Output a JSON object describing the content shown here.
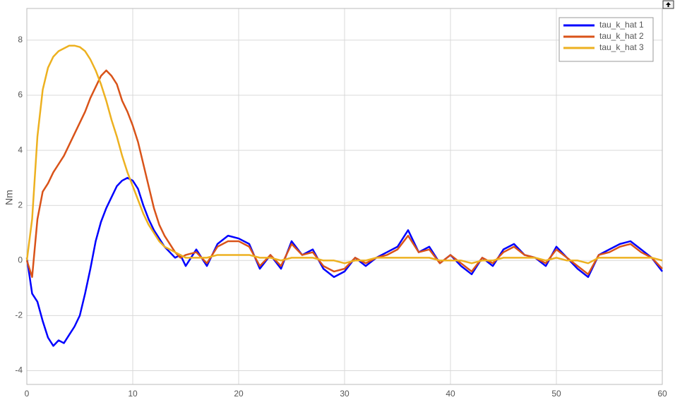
{
  "chart_data": {
    "type": "line",
    "ylabel": "Nm",
    "x": [
      0,
      0.5,
      1,
      1.5,
      2,
      2.5,
      3,
      3.5,
      4,
      4.5,
      5,
      5.5,
      6,
      6.5,
      7,
      7.5,
      8,
      8.5,
      9,
      9.5,
      10,
      10.5,
      11,
      11.5,
      12,
      12.5,
      13,
      13.5,
      14,
      14.5,
      15,
      16,
      17,
      18,
      19,
      20,
      21,
      22,
      23,
      24,
      25,
      26,
      27,
      28,
      29,
      30,
      31,
      32,
      33,
      34,
      35,
      36,
      37,
      38,
      39,
      40,
      41,
      42,
      43,
      44,
      45,
      46,
      47,
      48,
      49,
      50,
      51,
      52,
      53,
      54,
      55,
      56,
      57,
      58,
      59,
      60
    ],
    "series": [
      {
        "name": "tau_k_hat 1",
        "color": "#0000ff",
        "values": [
          0.1,
          -1.2,
          -1.5,
          -2.2,
          -2.8,
          -3.1,
          -2.9,
          -3.0,
          -2.7,
          -2.4,
          -2.0,
          -1.2,
          -0.3,
          0.7,
          1.4,
          1.9,
          2.3,
          2.7,
          2.9,
          3.0,
          2.9,
          2.6,
          2.0,
          1.5,
          1.1,
          0.8,
          0.5,
          0.3,
          0.1,
          0.2,
          -0.2,
          0.4,
          -0.2,
          0.6,
          0.9,
          0.8,
          0.6,
          -0.3,
          0.2,
          -0.3,
          0.7,
          0.2,
          0.4,
          -0.3,
          -0.6,
          -0.4,
          0.1,
          -0.2,
          0.1,
          0.3,
          0.5,
          1.1,
          0.3,
          0.5,
          -0.1,
          0.2,
          -0.2,
          -0.5,
          0.1,
          -0.2,
          0.4,
          0.6,
          0.2,
          0.1,
          -0.2,
          0.5,
          0.1,
          -0.3,
          -0.6,
          0.2,
          0.4,
          0.6,
          0.7,
          0.4,
          0.1,
          -0.4
        ]
      },
      {
        "name": "tau_k_hat 2",
        "color": "#d95319",
        "values": [
          0,
          -0.6,
          1.5,
          2.5,
          2.8,
          3.2,
          3.5,
          3.8,
          4.2,
          4.6,
          5.0,
          5.4,
          5.9,
          6.3,
          6.7,
          6.9,
          6.7,
          6.4,
          5.8,
          5.4,
          4.9,
          4.3,
          3.5,
          2.7,
          1.9,
          1.3,
          0.9,
          0.6,
          0.3,
          0.1,
          0.2,
          0.3,
          -0.1,
          0.5,
          0.7,
          0.7,
          0.5,
          -0.2,
          0.2,
          -0.2,
          0.6,
          0.2,
          0.3,
          -0.2,
          -0.4,
          -0.3,
          0.1,
          -0.1,
          0.1,
          0.2,
          0.4,
          0.9,
          0.3,
          0.4,
          -0.1,
          0.2,
          -0.1,
          -0.4,
          0.1,
          -0.1,
          0.3,
          0.5,
          0.2,
          0.1,
          -0.1,
          0.4,
          0.1,
          -0.2,
          -0.5,
          0.2,
          0.3,
          0.5,
          0.6,
          0.3,
          0.1,
          -0.3
        ]
      },
      {
        "name": "tau_k_hat 3",
        "color": "#edb120",
        "values": [
          0,
          1.5,
          4.5,
          6.2,
          7.0,
          7.4,
          7.6,
          7.7,
          7.8,
          7.8,
          7.75,
          7.6,
          7.3,
          6.9,
          6.4,
          5.8,
          5.1,
          4.5,
          3.8,
          3.2,
          2.7,
          2.2,
          1.7,
          1.3,
          1.0,
          0.7,
          0.5,
          0.4,
          0.3,
          0.2,
          0.1,
          0.1,
          0.1,
          0.2,
          0.2,
          0.2,
          0.2,
          0.1,
          0.1,
          0,
          0.1,
          0.1,
          0.1,
          0,
          0,
          -0.1,
          0,
          0,
          0.1,
          0.1,
          0.1,
          0.1,
          0.1,
          0.1,
          0,
          0,
          0,
          -0.1,
          0,
          0,
          0.1,
          0.1,
          0.1,
          0.1,
          0,
          0.1,
          0,
          0,
          -0.1,
          0.1,
          0.1,
          0.1,
          0.1,
          0.1,
          0.1,
          0
        ]
      }
    ],
    "xlim": [
      0,
      60
    ],
    "xticks": [
      0,
      10,
      20,
      30,
      40,
      50,
      60
    ],
    "ylim": [
      -4.5,
      9.15
    ],
    "yticks": [
      -4,
      -2,
      0,
      2,
      4,
      6,
      8
    ],
    "grid": true,
    "legend": "northeast"
  }
}
